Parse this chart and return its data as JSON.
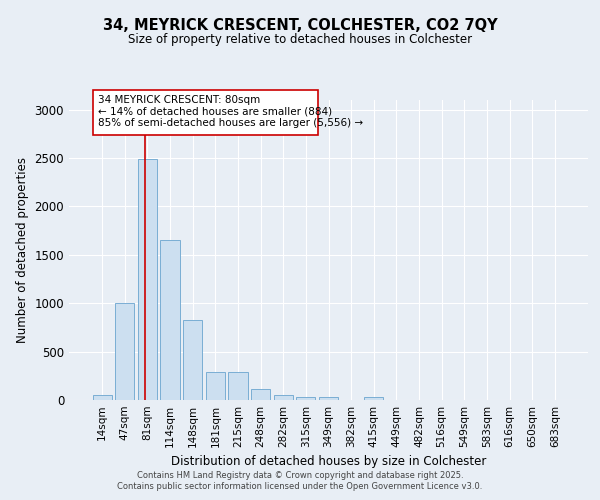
{
  "title_line1": "34, MEYRICK CRESCENT, COLCHESTER, CO2 7QY",
  "title_line2": "Size of property relative to detached houses in Colchester",
  "xlabel": "Distribution of detached houses by size in Colchester",
  "ylabel": "Number of detached properties",
  "categories": [
    "14sqm",
    "47sqm",
    "81sqm",
    "114sqm",
    "148sqm",
    "181sqm",
    "215sqm",
    "248sqm",
    "282sqm",
    "315sqm",
    "349sqm",
    "382sqm",
    "415sqm",
    "449sqm",
    "482sqm",
    "516sqm",
    "549sqm",
    "583sqm",
    "616sqm",
    "650sqm",
    "683sqm"
  ],
  "values": [
    50,
    1000,
    2490,
    1650,
    830,
    290,
    290,
    115,
    55,
    30,
    30,
    0,
    30,
    0,
    0,
    0,
    0,
    0,
    0,
    0,
    0
  ],
  "bar_color": "#ccdff0",
  "bar_edge_color": "#7aaed4",
  "bar_linewidth": 0.7,
  "vline_color": "#cc0000",
  "vline_linewidth": 1.2,
  "annotation_text": "34 MEYRICK CRESCENT: 80sqm\n← 14% of detached houses are smaller (884)\n85% of semi-detached houses are larger (5,556) →",
  "annotation_box_color": "#ffffff",
  "annotation_box_edge_color": "#cc0000",
  "ylim": [
    0,
    3100
  ],
  "yticks": [
    0,
    500,
    1000,
    1500,
    2000,
    2500,
    3000
  ],
  "background_color": "#e8eef5",
  "grid_color": "#ffffff",
  "footer_line1": "Contains HM Land Registry data © Crown copyright and database right 2025.",
  "footer_line2": "Contains public sector information licensed under the Open Government Licence v3.0."
}
